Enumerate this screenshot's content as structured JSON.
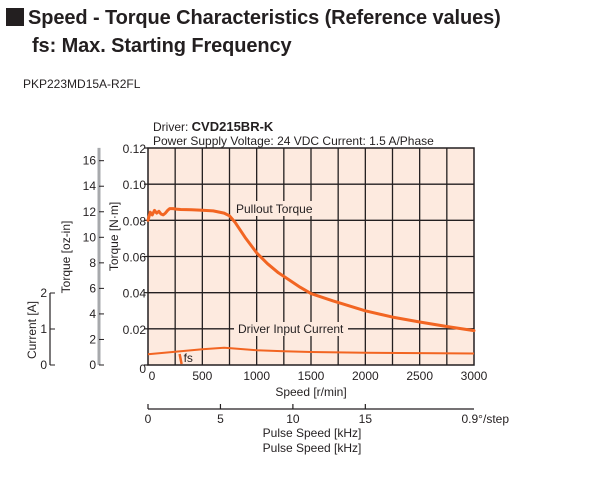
{
  "header": {
    "title_line1": "Speed - Torque Characteristics (Reference values)",
    "title_line2": "fs: Max. Starting Frequency",
    "model": "PKP223MD15A-R2FL"
  },
  "colors": {
    "plot_background": "#fdeadf",
    "curve": "#f26522",
    "grid": "#231f20",
    "secondary_axis": "#a7a9ac"
  },
  "chart_data": {
    "type": "line",
    "driver_prefix": "Driver: ",
    "driver_name": "CVD215BR-K",
    "conditions": "Power Supply Voltage: 24 VDC  Current: 1.5 A/Phase",
    "xlabel": "Speed [r/min]",
    "xlim": [
      0,
      3000
    ],
    "xticks": [
      "0",
      "500",
      "1000",
      "1500",
      "2000",
      "2500",
      "3000"
    ],
    "xtick_values": [
      0,
      500,
      1000,
      1500,
      2000,
      2500,
      3000
    ],
    "ylabel": "Torque [N·m]",
    "ylim": [
      0,
      0.12
    ],
    "yticks": [
      "0",
      "0.02",
      "0.04",
      "0.06",
      "0.08",
      "0.10",
      "0.12"
    ],
    "ytick_values": [
      0,
      0.02,
      0.04,
      0.06,
      0.08,
      0.1,
      0.12
    ],
    "grid": true,
    "secondary_axes": [
      {
        "label": "Torque [oz-in]",
        "range": [
          0,
          17
        ],
        "ticks": [
          "0",
          "2",
          "4",
          "6",
          "8",
          "10",
          "12",
          "14",
          "16"
        ],
        "tick_values": [
          0,
          2,
          4,
          6,
          8,
          10,
          12,
          14,
          16
        ]
      },
      {
        "label": "Current [A]",
        "range": [
          0,
          2
        ],
        "ticks": [
          "0",
          "1",
          "2"
        ],
        "tick_values": [
          0,
          1,
          2
        ]
      }
    ],
    "pulse_axis": {
      "label": "Pulse Speed [kHz]",
      "label_repeat": "Pulse Speed [kHz]",
      "range": [
        0,
        22.5
      ],
      "ticks": [
        "0",
        "5",
        "10",
        "15"
      ],
      "tick_values": [
        0,
        5,
        10,
        15
      ],
      "step_note": "0.9°/step"
    },
    "series": [
      {
        "name": "Pullout Torque",
        "unit": "N·m",
        "x": [
          0,
          20,
          40,
          60,
          80,
          100,
          120,
          140,
          160,
          180,
          200,
          230,
          260,
          300,
          400,
          500,
          600,
          700,
          750,
          800,
          900,
          1000,
          1100,
          1200,
          1300,
          1400,
          1500,
          1700,
          2000,
          2250,
          2500,
          2750,
          3000
        ],
        "y": [
          0.08,
          0.0845,
          0.083,
          0.0855,
          0.084,
          0.085,
          0.0835,
          0.083,
          0.084,
          0.0855,
          0.0865,
          0.0865,
          0.0862,
          0.086,
          0.0858,
          0.0856,
          0.0852,
          0.084,
          0.0825,
          0.079,
          0.07,
          0.062,
          0.056,
          0.051,
          0.047,
          0.043,
          0.0395,
          0.0355,
          0.03,
          0.0265,
          0.0238,
          0.0213,
          0.019
        ]
      },
      {
        "name": "Driver Input Current",
        "unit": "A",
        "x": [
          0,
          250,
          500,
          700,
          750,
          1000,
          1250,
          1500,
          2000,
          2500,
          3000
        ],
        "y": [
          0.3,
          0.37,
          0.44,
          0.48,
          0.47,
          0.41,
          0.38,
          0.36,
          0.34,
          0.33,
          0.32
        ]
      }
    ],
    "annotations": [
      {
        "text": "Pullout Torque"
      },
      {
        "text": "Driver Input Current"
      },
      {
        "text": "fs",
        "x": 300
      }
    ]
  }
}
